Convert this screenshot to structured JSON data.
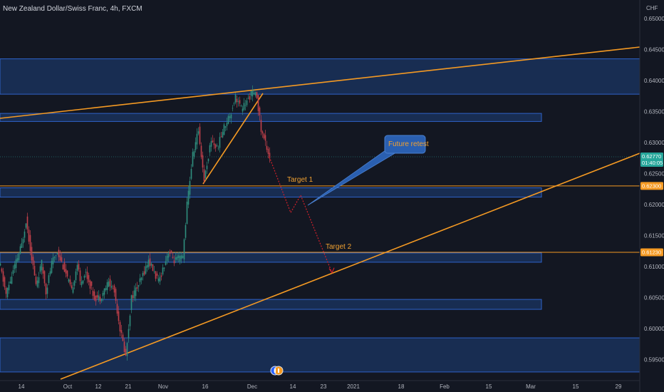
{
  "header": {
    "title": "New Zealand Dollar/Swiss Franc, 4h, FXCM"
  },
  "colors": {
    "background": "#131722",
    "zone_fill": "#1e3f7a",
    "zone_border": "#2e62c8",
    "trendline": "#f59a23",
    "up_candle": "#2f8f7e",
    "down_candle": "#c2404a",
    "projection": "#d0202a",
    "callout": "#2a5fb0",
    "last_price_badge": "#26a69a",
    "level_badge": "#f59a23"
  },
  "chart_data": {
    "type": "candlestick",
    "symbol": "NZDCHF",
    "timeframe": "4h",
    "currency": "CHF",
    "ylim": [
      0.5925,
      0.6525
    ],
    "y_ticks": [
      "0.65000",
      "0.64500",
      "0.64000",
      "0.63500",
      "0.63000",
      "0.62500",
      "0.62000",
      "0.61500",
      "0.61000",
      "0.60500",
      "0.60000",
      "0.59500"
    ],
    "x_ticks": [
      "14",
      "Oct",
      "12",
      "21",
      "Nov",
      "16",
      "Dec",
      "14",
      "23",
      "2021",
      "18",
      "Feb",
      "15",
      "Mar",
      "15",
      "29"
    ],
    "last_price": {
      "value": "0.62770",
      "countdown": "01:40:05"
    },
    "levels": [
      {
        "value": "0.62300"
      },
      {
        "value": "0.61230"
      }
    ],
    "price_path_anchors": [
      {
        "t": 0,
        "p": 0.61
      },
      {
        "t": 8,
        "p": 0.6055
      },
      {
        "t": 20,
        "p": 0.61
      },
      {
        "t": 30,
        "p": 0.6135
      },
      {
        "t": 36,
        "p": 0.6175
      },
      {
        "t": 44,
        "p": 0.6115
      },
      {
        "t": 50,
        "p": 0.607
      },
      {
        "t": 58,
        "p": 0.6105
      },
      {
        "t": 64,
        "p": 0.606
      },
      {
        "t": 72,
        "p": 0.6105
      },
      {
        "t": 80,
        "p": 0.6125
      },
      {
        "t": 90,
        "p": 0.6095
      },
      {
        "t": 100,
        "p": 0.606
      },
      {
        "t": 108,
        "p": 0.6105
      },
      {
        "t": 112,
        "p": 0.6075
      },
      {
        "t": 120,
        "p": 0.609
      },
      {
        "t": 132,
        "p": 0.605
      },
      {
        "t": 140,
        "p": 0.605
      },
      {
        "t": 152,
        "p": 0.6075
      },
      {
        "t": 160,
        "p": 0.606
      },
      {
        "t": 168,
        "p": 0.6
      },
      {
        "t": 176,
        "p": 0.5955
      },
      {
        "t": 184,
        "p": 0.605
      },
      {
        "t": 196,
        "p": 0.6075
      },
      {
        "t": 208,
        "p": 0.611
      },
      {
        "t": 222,
        "p": 0.6075
      },
      {
        "t": 236,
        "p": 0.6125
      },
      {
        "t": 244,
        "p": 0.611
      },
      {
        "t": 256,
        "p": 0.6115
      },
      {
        "t": 262,
        "p": 0.62
      },
      {
        "t": 270,
        "p": 0.628
      },
      {
        "t": 278,
        "p": 0.632
      },
      {
        "t": 286,
        "p": 0.624
      },
      {
        "t": 296,
        "p": 0.6305
      },
      {
        "t": 304,
        "p": 0.629
      },
      {
        "t": 314,
        "p": 0.6325
      },
      {
        "t": 324,
        "p": 0.635
      },
      {
        "t": 330,
        "p": 0.6375
      },
      {
        "t": 338,
        "p": 0.6355
      },
      {
        "t": 346,
        "p": 0.6365
      },
      {
        "t": 352,
        "p": 0.638
      },
      {
        "t": 360,
        "p": 0.6375
      },
      {
        "t": 366,
        "p": 0.632
      },
      {
        "t": 372,
        "p": 0.63
      },
      {
        "t": 378,
        "p": 0.6277
      }
    ],
    "projection_path": [
      {
        "t": 378,
        "p": 0.6277
      },
      {
        "t": 408,
        "p": 0.6187
      },
      {
        "t": 422,
        "p": 0.6215
      },
      {
        "t": 466,
        "p": 0.609
      }
    ],
    "zones": [
      {
        "from": 0.6435,
        "to": 0.6378
      },
      {
        "from": 0.6347,
        "to": 0.6334
      },
      {
        "from": 0.6227,
        "to": 0.6212
      },
      {
        "from": 0.6122,
        "to": 0.6107
      },
      {
        "from": 0.6047,
        "to": 0.6031
      },
      {
        "from": 0.5985,
        "to": 0.593
      }
    ],
    "annotations": [
      {
        "text": "Target 1"
      },
      {
        "text": "Target 2"
      },
      {
        "text": "Future retest"
      }
    ]
  }
}
